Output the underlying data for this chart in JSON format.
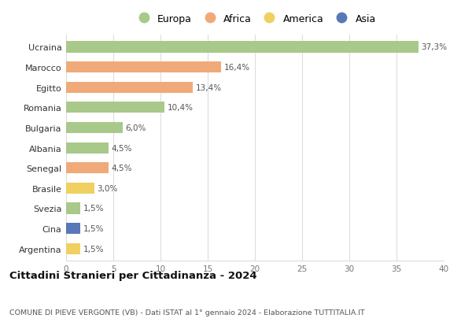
{
  "countries": [
    "Ucraina",
    "Marocco",
    "Egitto",
    "Romania",
    "Bulgaria",
    "Albania",
    "Senegal",
    "Brasile",
    "Svezia",
    "Cina",
    "Argentina"
  ],
  "values": [
    37.3,
    16.4,
    13.4,
    10.4,
    6.0,
    4.5,
    4.5,
    3.0,
    1.5,
    1.5,
    1.5
  ],
  "labels": [
    "37,3%",
    "16,4%",
    "13,4%",
    "10,4%",
    "6,0%",
    "4,5%",
    "4,5%",
    "3,0%",
    "1,5%",
    "1,5%",
    "1,5%"
  ],
  "continents": [
    "Europa",
    "Africa",
    "Africa",
    "Europa",
    "Europa",
    "Europa",
    "Africa",
    "America",
    "Europa",
    "Asia",
    "America"
  ],
  "continent_colors": {
    "Europa": "#a8c98a",
    "Africa": "#f0aa7a",
    "America": "#f0d060",
    "Asia": "#5878b8"
  },
  "legend_order": [
    "Europa",
    "Africa",
    "America",
    "Asia"
  ],
  "title": "Cittadini Stranieri per Cittadinanza - 2024",
  "subtitle": "COMUNE DI PIEVE VERGONTE (VB) - Dati ISTAT al 1° gennaio 2024 - Elaborazione TUTTITALIA.IT",
  "xlim": [
    0,
    40
  ],
  "xticks": [
    0,
    5,
    10,
    15,
    20,
    25,
    30,
    35,
    40
  ],
  "bg_color": "#ffffff",
  "grid_color": "#dddddd",
  "bar_height": 0.55
}
